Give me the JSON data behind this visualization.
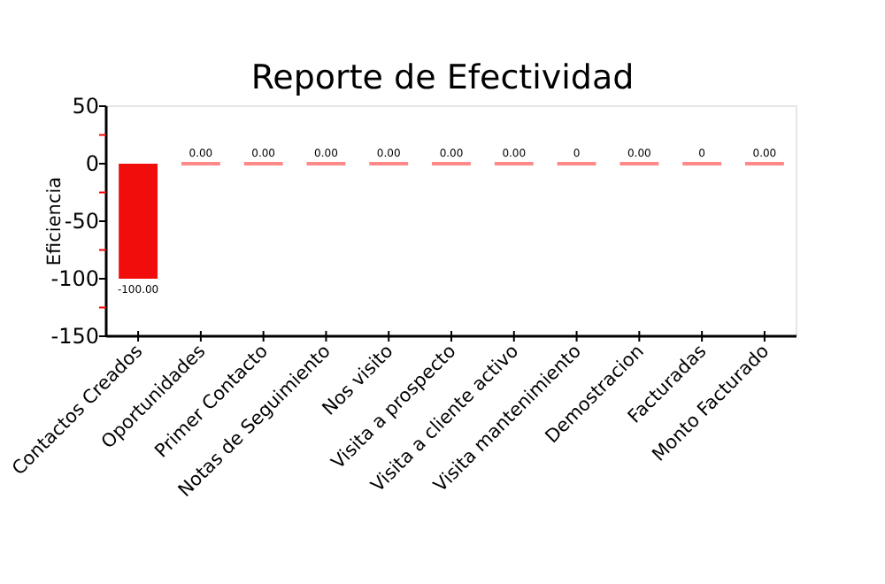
{
  "chart_data": {
    "type": "bar",
    "title": "Reporte de Efectividad",
    "ylabel": "Eficiencia",
    "categories": [
      "Contactos Creados",
      "Oportunidades",
      "Primer Contacto",
      "Notas de Seguimiento",
      "Nos visito",
      "Visita a prospecto",
      "Visita a cliente activo",
      "Visita mantenimiento",
      "Demostracion",
      "Facturadas",
      "Monto Facturado"
    ],
    "values": [
      -100,
      0,
      0,
      0,
      0,
      0,
      0,
      0,
      0,
      0,
      0
    ],
    "value_labels": [
      "-100.00",
      "0.00",
      "0.00",
      "0.00",
      "0.00",
      "0.00",
      "0.00",
      "0",
      "0.00",
      "0",
      "0.00"
    ],
    "colors": [
      "#f20d0d",
      "#ff8888",
      "#ff8888",
      "#ff8888",
      "#ff8888",
      "#ff8888",
      "#ff8888",
      "#ff8888",
      "#ff8888",
      "#ff8888",
      "#ff8888"
    ],
    "ylim": [
      -150,
      50
    ],
    "yticks": [
      -150,
      {
        "value": -125,
        "label": null
      },
      -100,
      {
        "value": -75,
        "label": null
      },
      -50,
      {
        "value": -25,
        "label": null
      },
      0,
      {
        "value": 25,
        "label": null
      },
      50
    ],
    "grid": false
  }
}
